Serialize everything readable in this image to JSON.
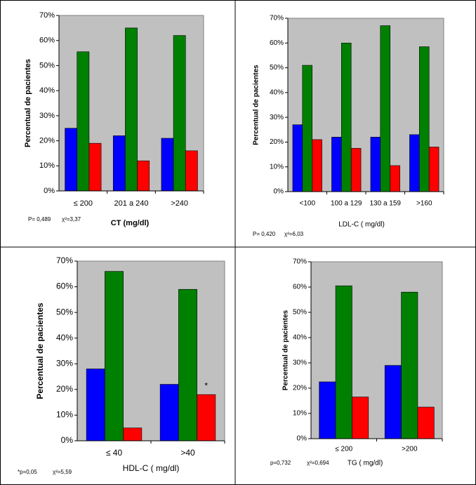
{
  "chart_data": [
    {
      "type": "bar",
      "ylabel": "Percentual de pacientes",
      "xlabel": "CT (mg/dl)",
      "categories": [
        "≤ 200",
        "201 a 240",
        ">240"
      ],
      "series": [
        {
          "color": "#0000ff",
          "values": [
            25,
            22,
            21
          ]
        },
        {
          "color": "#008000",
          "values": [
            55.5,
            65,
            62
          ]
        },
        {
          "color": "#ff0000",
          "values": [
            19,
            12,
            16
          ]
        }
      ],
      "ylim": [
        0,
        70
      ],
      "yticks": [
        {
          "value": 0,
          "label": "0%"
        },
        {
          "value": 10,
          "label": "10%"
        },
        {
          "value": 20,
          "label": "20%"
        },
        {
          "value": 30,
          "label": "30%"
        },
        {
          "value": 40,
          "label": "40%"
        },
        {
          "value": 50,
          "label": "50%"
        },
        {
          "value": 60,
          "label": "60%"
        },
        {
          "value": 70,
          "label": "70%"
        }
      ],
      "notes": [
        "P= 0,489",
        "χ²=3,37"
      ]
    },
    {
      "type": "bar",
      "ylabel": "Percentual de pacientes",
      "xlabel": "LDL-C ( mg/dl)",
      "categories": [
        "<100",
        "100 a 129",
        "130 a 159",
        ">160"
      ],
      "series": [
        {
          "color": "#0000ff",
          "values": [
            27,
            22,
            22,
            23
          ]
        },
        {
          "color": "#008000",
          "values": [
            51,
            60,
            67,
            58.5
          ]
        },
        {
          "color": "#ff0000",
          "values": [
            21,
            17.5,
            10.5,
            18
          ]
        }
      ],
      "ylim": [
        0,
        70
      ],
      "yticks": [
        {
          "value": 0,
          "label": "0%"
        },
        {
          "value": 10,
          "label": "10%"
        },
        {
          "value": 20,
          "label": "20%"
        },
        {
          "value": 30,
          "label": "30%"
        },
        {
          "value": 40,
          "label": "40%"
        },
        {
          "value": 50,
          "label": "50%"
        },
        {
          "value": 60,
          "label": "60%"
        },
        {
          "value": 70,
          "label": "70%"
        }
      ],
      "notes": [
        "P= 0,420",
        "χ²=6,03"
      ]
    },
    {
      "type": "bar",
      "ylabel": "Percentual de pacientes",
      "xlabel": "HDL-C ( mg/dl)",
      "categories": [
        "≤ 40",
        ">40"
      ],
      "series": [
        {
          "color": "#0000ff",
          "values": [
            28,
            22
          ]
        },
        {
          "color": "#008000",
          "values": [
            66,
            59
          ]
        },
        {
          "color": "#ff0000",
          "values": [
            5,
            18
          ]
        }
      ],
      "ylim": [
        0,
        70
      ],
      "yticks": [
        {
          "value": 0,
          "label": "0%"
        },
        {
          "value": 10,
          "label": "10%"
        },
        {
          "value": 20,
          "label": "20%"
        },
        {
          "value": 30,
          "label": "30%"
        },
        {
          "value": 40,
          "label": "40%"
        },
        {
          "value": 50,
          "label": "50%"
        },
        {
          "value": 60,
          "label": "60%"
        },
        {
          "value": 70,
          "label": "70%"
        }
      ],
      "annotation": "*",
      "notes": [
        "*p=0,05",
        "χ²=5,59"
      ]
    },
    {
      "type": "bar",
      "ylabel": "Percentual de pacientes",
      "xlabel": "TG ( mg/dl)",
      "categories": [
        "≤ 200",
        ">200"
      ],
      "series": [
        {
          "color": "#0000ff",
          "values": [
            22.5,
            29
          ]
        },
        {
          "color": "#008000",
          "values": [
            60.5,
            58
          ]
        },
        {
          "color": "#ff0000",
          "values": [
            16.5,
            12.5
          ]
        }
      ],
      "ylim": [
        0,
        70
      ],
      "yticks": [
        {
          "value": 0,
          "label": "0%"
        },
        {
          "value": 10,
          "label": "10%"
        },
        {
          "value": 20,
          "label": "20%"
        },
        {
          "value": 30,
          "label": "30%"
        },
        {
          "value": 40,
          "label": "40%"
        },
        {
          "value": 50,
          "label": "50%"
        },
        {
          "value": 60,
          "label": "60%"
        },
        {
          "value": 70,
          "label": "70%"
        }
      ],
      "notes": [
        "p=0,732",
        "χ²=0,694"
      ]
    }
  ]
}
